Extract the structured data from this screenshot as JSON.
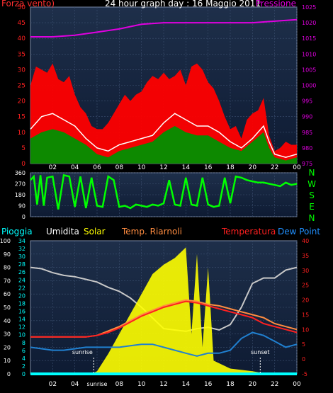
{
  "chart_data": [
    {
      "type": "line",
      "title": "24 hour graph day : 16 Maggio 2011",
      "left_axis_label": "Forza vento)",
      "right_axis_label": "Pressione",
      "ylim_left": [
        0,
        50
      ],
      "ylim_right": [
        975,
        1025
      ],
      "x_ticks": [
        "02",
        "04",
        "06",
        "08",
        "10",
        "12",
        "14",
        "16",
        "18",
        "20",
        "22",
        "00"
      ],
      "series": [
        {
          "role": "gust",
          "axis": "left",
          "color": "#ff0000",
          "x": [
            0,
            0.5,
            1,
            1.5,
            2,
            2.5,
            3,
            3.5,
            4,
            4.5,
            5,
            5.5,
            6,
            6.5,
            7,
            7.5,
            8,
            8.5,
            9,
            9.5,
            10,
            10.5,
            11,
            11.5,
            12,
            12.5,
            13,
            13.5,
            14,
            14.5,
            15,
            15.5,
            16,
            16.5,
            17,
            17.5,
            18,
            18.5,
            19,
            19.5,
            20,
            20.5,
            21,
            21.5,
            22,
            22.5,
            23,
            23.5,
            24
          ],
          "values": [
            25,
            31,
            30,
            29,
            32,
            27,
            26,
            28,
            22,
            18,
            16,
            12,
            11,
            11,
            13,
            16,
            19,
            22,
            20,
            22,
            23,
            26,
            28,
            27,
            29,
            27,
            28,
            30,
            25,
            31,
            32,
            30,
            26,
            24,
            20,
            15,
            11,
            12,
            8,
            14,
            16,
            17,
            21,
            9,
            4,
            5,
            7,
            6,
            6
          ]
        },
        {
          "role": "average",
          "axis": "left",
          "color": "#ffffff",
          "x": [
            0,
            1,
            2,
            3,
            4,
            5,
            6,
            7,
            8,
            9,
            10,
            11,
            12,
            13,
            14,
            15,
            16,
            17,
            18,
            19,
            20,
            21,
            21.5,
            22,
            23,
            24
          ],
          "values": [
            11,
            15,
            16,
            14,
            12,
            8,
            5,
            4,
            6,
            7,
            8,
            9,
            13,
            16,
            14,
            12,
            12,
            10,
            7,
            5,
            8,
            12,
            7,
            3,
            2,
            3
          ]
        },
        {
          "role": "speed",
          "axis": "left",
          "color": "#009000",
          "x": [
            0,
            1,
            2,
            3,
            4,
            5,
            6,
            7,
            8,
            9,
            10,
            11,
            12,
            13,
            14,
            15,
            16,
            17,
            18,
            19,
            20,
            21,
            21.5,
            22,
            23,
            24
          ],
          "values": [
            8,
            10,
            11,
            10,
            8,
            6,
            3,
            2,
            4,
            5,
            6,
            7,
            10,
            12,
            10,
            9,
            9,
            7,
            5,
            4,
            7,
            10,
            5,
            2,
            1,
            2
          ]
        },
        {
          "role": "pressure",
          "axis": "right",
          "color": "#e000e0",
          "x": [
            0,
            2,
            4,
            6,
            8,
            10,
            12,
            14,
            16,
            18,
            20,
            22,
            24
          ],
          "values": [
            1015.5,
            1015.5,
            1016,
            1017,
            1018,
            1019.5,
            1020,
            1020,
            1020,
            1020,
            1020,
            1020.5,
            1021
          ]
        }
      ]
    },
    {
      "type": "scatter",
      "ylim": [
        0,
        360
      ],
      "y_ticks": [
        0,
        90,
        180,
        270,
        360
      ],
      "right_labels": [
        "N",
        "W",
        "S",
        "E",
        "N"
      ],
      "x_ticks": [
        "02",
        "04",
        "06",
        "08",
        "10",
        "12",
        "14",
        "16",
        "18",
        "20",
        "22",
        "00"
      ],
      "series": [
        {
          "role": "wind_direction",
          "color": "#00ff00",
          "x": [
            0,
            0.3,
            0.6,
            0.9,
            1.2,
            1.5,
            2,
            2.5,
            3,
            3.5,
            4,
            4.5,
            5,
            5.5,
            6,
            6.5,
            7,
            7.5,
            8,
            8.5,
            9,
            9.5,
            10,
            10.5,
            11,
            11.5,
            12,
            12.5,
            13,
            13.5,
            14,
            14.5,
            15,
            15.5,
            16,
            16.5,
            17,
            17.5,
            18,
            18.5,
            19,
            19.5,
            20,
            20.5,
            21,
            21.5,
            22,
            22.5,
            23,
            23.5,
            24
          ],
          "values": [
            300,
            330,
            100,
            340,
            90,
            320,
            330,
            60,
            340,
            330,
            80,
            330,
            70,
            320,
            90,
            80,
            330,
            300,
            80,
            90,
            70,
            100,
            90,
            80,
            100,
            90,
            110,
            300,
            100,
            90,
            320,
            100,
            90,
            320,
            100,
            80,
            90,
            320,
            110,
            330,
            320,
            300,
            290,
            280,
            280,
            270,
            260,
            250,
            280,
            260,
            270
          ]
        }
      ]
    },
    {
      "type": "line",
      "legend": [
        "Pioggia",
        "Umidita",
        "Solar",
        "Temp. Riarnoli",
        "Temperatura",
        "Dew Point"
      ],
      "legend_colors": [
        "#00ffff",
        "#ffffff",
        "#ffff00",
        "#ff8c40",
        "#ff2020",
        "#2090ff"
      ],
      "ylim_left": [
        0,
        100
      ],
      "y_ticks_left": [
        0,
        10,
        20,
        30,
        40,
        50,
        60,
        70,
        80,
        90,
        100
      ],
      "ylim_inner": [
        0,
        34
      ],
      "y_ticks_inner": [
        0,
        2,
        4,
        6,
        8,
        10,
        12,
        14,
        16,
        18,
        20,
        22,
        24,
        26,
        28,
        30,
        32,
        34
      ],
      "ylim_right": [
        -5,
        40
      ],
      "y_ticks_right": [
        -5,
        0,
        5,
        10,
        15,
        20,
        25,
        30,
        35,
        40
      ],
      "x_ticks": [
        "02",
        "04",
        "sunrise",
        "08",
        "10",
        "12",
        "14",
        "16",
        "18",
        "20",
        "22",
        "00"
      ],
      "annotations": {
        "sunrise": "sunrise",
        "sunset": "sunset"
      },
      "series": [
        {
          "role": "humidity",
          "axis": "left",
          "color": "#c8c8c8",
          "x": [
            0,
            1,
            2,
            3,
            4,
            5,
            6,
            7,
            8,
            9,
            10,
            11,
            12,
            13,
            14,
            15,
            16,
            17,
            18,
            19,
            20,
            21,
            22,
            23,
            24
          ],
          "values": [
            80,
            79,
            76,
            74,
            73,
            71,
            69,
            65,
            62,
            57,
            50,
            42,
            34,
            33,
            32,
            34,
            35,
            33,
            37,
            50,
            68,
            72,
            72,
            78,
            80
          ]
        },
        {
          "role": "solar",
          "axis": "left",
          "color": "#ffff00",
          "x": [
            0,
            5.5,
            6,
            7,
            8,
            9,
            10,
            11,
            12,
            13,
            14,
            14.5,
            15,
            15.5,
            16,
            16.5,
            17,
            18,
            19,
            20,
            20.7,
            21,
            24
          ],
          "values": [
            0,
            0,
            2,
            15,
            30,
            45,
            60,
            75,
            82,
            87,
            95,
            30,
            90,
            20,
            80,
            10,
            8,
            4,
            3,
            2,
            1,
            0,
            0
          ]
        },
        {
          "role": "temp_riarnoli",
          "axis": "right",
          "color": "#ff8c40",
          "x": [
            0,
            2,
            4,
            5,
            6,
            7,
            8,
            9,
            10,
            11,
            12,
            13,
            14,
            15,
            16,
            17,
            18,
            19,
            20,
            21,
            22,
            23,
            24
          ],
          "values": [
            7.5,
            7.5,
            7.5,
            7.5,
            8,
            9.5,
            11,
            13,
            15,
            16.5,
            18,
            19,
            20,
            19.5,
            18.5,
            18,
            17,
            16,
            15,
            14,
            12,
            11,
            10
          ]
        },
        {
          "role": "temperature",
          "axis": "right",
          "color": "#ff2020",
          "x": [
            0,
            2,
            4,
            5,
            6,
            7,
            8,
            9,
            10,
            11,
            12,
            13,
            14,
            15,
            16,
            17,
            18,
            19,
            20,
            21,
            22,
            23,
            24
          ],
          "values": [
            7.5,
            7.5,
            7.5,
            7.5,
            8,
            9,
            10.5,
            12.5,
            14.5,
            16,
            17.5,
            18.5,
            19.5,
            19,
            18,
            17,
            16,
            15,
            14,
            12,
            11,
            10,
            9
          ]
        },
        {
          "role": "dew_point",
          "axis": "right",
          "color": "#2080d0",
          "x": [
            0,
            1,
            2,
            3,
            4,
            5,
            6,
            7,
            8,
            9,
            10,
            11,
            12,
            13,
            14,
            15,
            16,
            17,
            18,
            19,
            20,
            21,
            22,
            23,
            24
          ],
          "values": [
            4,
            3.5,
            3,
            3,
            3.5,
            4,
            4,
            4,
            4,
            4.5,
            5,
            5,
            4,
            3,
            2,
            1,
            2,
            2,
            3,
            7,
            9,
            8,
            6,
            4,
            5
          ]
        },
        {
          "role": "rain",
          "axis": "left",
          "color": "#00ffff",
          "x": [
            0,
            24
          ],
          "values": [
            0,
            0
          ]
        }
      ]
    }
  ]
}
